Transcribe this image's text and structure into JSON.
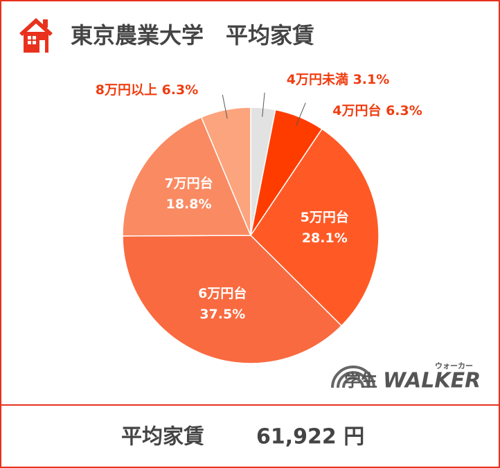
{
  "chart_data": {
    "type": "pie",
    "title": "東京農業大学　平均家賃",
    "categories": [
      "4万円未満",
      "4万円台",
      "5万円台",
      "6万円台",
      "7万円台",
      "8万円以上"
    ],
    "values": [
      3.1,
      6.3,
      28.1,
      37.5,
      18.8,
      6.3
    ],
    "value_labels": [
      "3.1%",
      "6.3%",
      "28.1%",
      "37.5%",
      "18.8%",
      "6.3%"
    ],
    "colors": [
      "#e2e2e2",
      "#ff3c00",
      "#ff5a26",
      "#f96a40",
      "#fa8a62",
      "#fba47d"
    ]
  },
  "logo": {
    "text": "学生",
    "brand": "WALKER",
    "ruby": "ウォーカー"
  },
  "footer": {
    "label": "平均家賃",
    "value": "61,922 円"
  }
}
